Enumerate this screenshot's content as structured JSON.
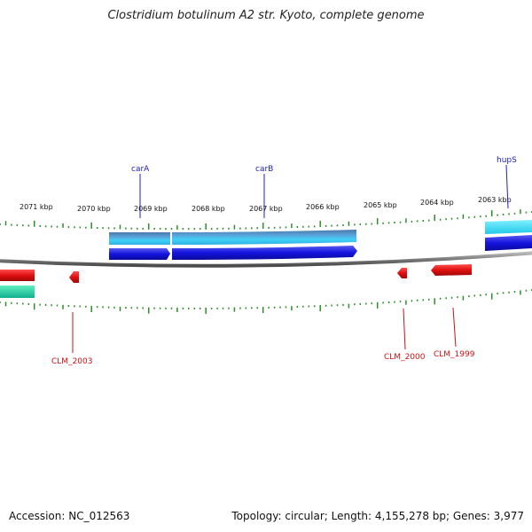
{
  "title": "Clostridium botulinum A2 str. Kyoto, complete genome",
  "accession": "Accession: NC_012563",
  "summary": "Topology: circular; Length: 4,155,278 bp; Genes: 3,977",
  "ticks": [
    "2071 kbp",
    "2070 kbp",
    "2069 kbp",
    "2068 kbp",
    "2067 kbp",
    "2066 kbp",
    "2065 kbp",
    "2064 kbp",
    "2063 kbp"
  ],
  "gene_labels": {
    "top": [
      "carA",
      "carB",
      "hupS"
    ],
    "bottom": [
      "CLM_2003",
      "CLM_2000",
      "CLM_1999"
    ]
  },
  "colors": {
    "backbone": "#8a8a8a",
    "tick": "#2e8b2e",
    "forward_dark": "#1414e0",
    "forward_light": "#38c8f0",
    "reverse": "#e01010",
    "reverse_light": "#20c0a0",
    "label_top": "#2020c0",
    "label_bottom": "#d01010"
  }
}
